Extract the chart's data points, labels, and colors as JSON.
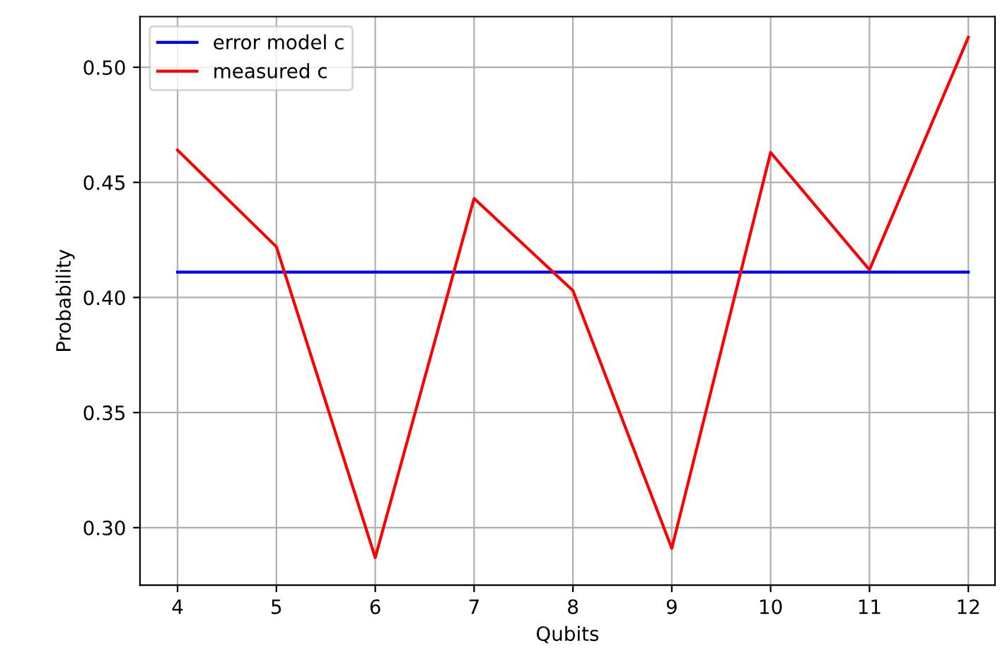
{
  "chart_data": {
    "type": "line",
    "xlabel": "Qubits",
    "ylabel": "Probability",
    "x": [
      4,
      5,
      6,
      7,
      8,
      9,
      10,
      11,
      12
    ],
    "series": [
      {
        "name": "error model c",
        "color": "#0000ff",
        "values": [
          0.411,
          0.411,
          0.411,
          0.411,
          0.411,
          0.411,
          0.411,
          0.411,
          0.411
        ]
      },
      {
        "name": "measured c",
        "color": "#ff0000",
        "values": [
          0.464,
          0.422,
          0.287,
          0.443,
          0.403,
          0.291,
          0.463,
          0.412,
          0.513
        ]
      }
    ],
    "xlim": [
      3.62,
      12.27
    ],
    "xticks": [
      4,
      5,
      6,
      7,
      8,
      9,
      10,
      11,
      12
    ],
    "ylim": [
      0.275,
      0.522
    ],
    "yticks": [
      {
        "value": 0.3,
        "label": "0.30"
      },
      {
        "value": 0.35,
        "label": "0.35"
      },
      {
        "value": 0.4,
        "label": "0.40"
      },
      {
        "value": 0.45,
        "label": "0.45"
      },
      {
        "value": 0.5,
        "label": "0.50"
      }
    ],
    "grid": true,
    "legend": "top left"
  }
}
